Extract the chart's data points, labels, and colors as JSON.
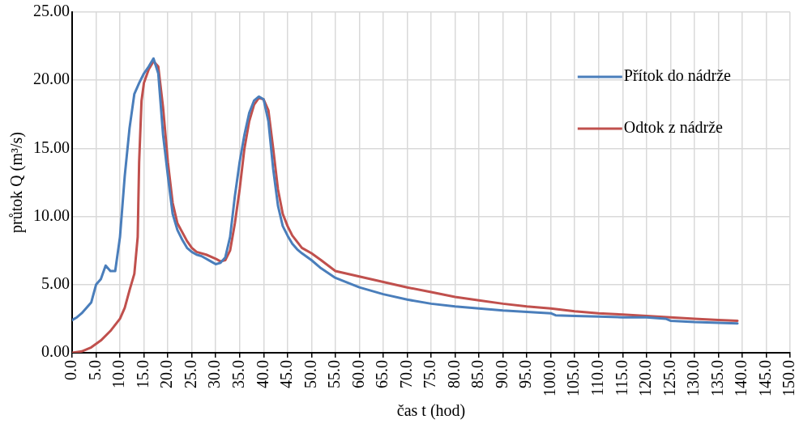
{
  "chart_data": {
    "type": "line",
    "xlabel": "čas t (hod)",
    "ylabel": "průtok Q (m³/s)",
    "xlim": [
      0,
      150
    ],
    "xticks": [
      {
        "value": 0,
        "label": "0.0"
      },
      {
        "value": 5,
        "label": "5.0"
      },
      {
        "value": 10,
        "label": "10.0"
      },
      {
        "value": 15,
        "label": "15.0"
      },
      {
        "value": 20,
        "label": "20.0"
      },
      {
        "value": 25,
        "label": "25.0"
      },
      {
        "value": 30,
        "label": "30.0"
      },
      {
        "value": 35,
        "label": "35.0"
      },
      {
        "value": 40,
        "label": "40.0"
      },
      {
        "value": 45,
        "label": "45.0"
      },
      {
        "value": 50,
        "label": "50.0"
      },
      {
        "value": 55,
        "label": "55.0"
      },
      {
        "value": 60,
        "label": "60.0"
      },
      {
        "value": 65,
        "label": "65.0"
      },
      {
        "value": 70,
        "label": "70.0"
      },
      {
        "value": 75,
        "label": "75.0"
      },
      {
        "value": 80,
        "label": "80.0"
      },
      {
        "value": 85,
        "label": "85.0"
      },
      {
        "value": 90,
        "label": "90.0"
      },
      {
        "value": 95,
        "label": "95.0"
      },
      {
        "value": 100,
        "label": "100.0"
      },
      {
        "value": 105,
        "label": "105.0"
      },
      {
        "value": 110,
        "label": "110.0"
      },
      {
        "value": 115,
        "label": "115.0"
      },
      {
        "value": 120,
        "label": "120.0"
      },
      {
        "value": 125,
        "label": "125.0"
      },
      {
        "value": 130,
        "label": "130.0"
      },
      {
        "value": 135,
        "label": "135.0"
      },
      {
        "value": 140,
        "label": "140.0"
      },
      {
        "value": 145,
        "label": "145.0"
      },
      {
        "value": 150,
        "label": "150.0"
      }
    ],
    "ylim": [
      0,
      25
    ],
    "yticks": [
      {
        "value": 0,
        "label": "0.00"
      },
      {
        "value": 5,
        "label": "5.00"
      },
      {
        "value": 10,
        "label": "10.00"
      },
      {
        "value": 15,
        "label": "15.00"
      },
      {
        "value": 20,
        "label": "20.00"
      },
      {
        "value": 25,
        "label": "25.00"
      }
    ],
    "grid": true,
    "legend": "top right",
    "marker": "none",
    "line_style": "solid",
    "series": [
      {
        "name": "Přítok do nádrže",
        "color": "#4a7ebb",
        "x": [
          0,
          1,
          2,
          3,
          4,
          5,
          6,
          7,
          8,
          9,
          10,
          11,
          12,
          13,
          14,
          15,
          16,
          17,
          18,
          19,
          20,
          21,
          22,
          23,
          24,
          25,
          26,
          27,
          28,
          29,
          30,
          31,
          32,
          33,
          34,
          35,
          36,
          37,
          38,
          39,
          40,
          41,
          42,
          43,
          44,
          45,
          46,
          47,
          48,
          50,
          52,
          55,
          60,
          65,
          70,
          75,
          80,
          85,
          90,
          95,
          100,
          101,
          105,
          110,
          115,
          120,
          124,
          125,
          130,
          135,
          139
        ],
        "values": [
          2.4,
          2.6,
          2.9,
          3.3,
          3.7,
          5.0,
          5.4,
          6.4,
          6.0,
          6.0,
          8.5,
          13.0,
          16.5,
          19.0,
          19.8,
          20.5,
          21.0,
          21.6,
          20.5,
          16.0,
          13.0,
          10.2,
          9.0,
          8.3,
          7.7,
          7.4,
          7.2,
          7.1,
          6.9,
          6.7,
          6.5,
          6.6,
          7.0,
          8.5,
          11.5,
          14.0,
          16.0,
          17.6,
          18.5,
          18.8,
          18.6,
          17.0,
          13.5,
          10.8,
          9.3,
          8.6,
          8.0,
          7.6,
          7.3,
          6.8,
          6.2,
          5.5,
          4.8,
          4.3,
          3.9,
          3.6,
          3.4,
          3.25,
          3.1,
          3.0,
          2.9,
          2.75,
          2.7,
          2.65,
          2.6,
          2.6,
          2.5,
          2.35,
          2.25,
          2.2,
          2.15
        ]
      },
      {
        "name": "Odtok z nádrže",
        "color": "#c0504d",
        "x": [
          0,
          2,
          4,
          6,
          8,
          10,
          11,
          12,
          13,
          13.7,
          14,
          14.5,
          15,
          16,
          17,
          18,
          19,
          20,
          21,
          22,
          24,
          25,
          26,
          28,
          30,
          31,
          32,
          33,
          34,
          35,
          36,
          37,
          38,
          39,
          40,
          41,
          42,
          43,
          44,
          45,
          46,
          48,
          50,
          52,
          55,
          60,
          65,
          70,
          75,
          80,
          85,
          90,
          95,
          100,
          105,
          110,
          115,
          120,
          125,
          130,
          135,
          139
        ],
        "values": [
          0.0,
          0.1,
          0.4,
          0.9,
          1.6,
          2.5,
          3.3,
          4.6,
          5.8,
          8.5,
          14.0,
          18.5,
          19.8,
          20.8,
          21.4,
          21.0,
          18.0,
          14.0,
          11.0,
          9.5,
          8.2,
          7.7,
          7.4,
          7.2,
          6.9,
          6.7,
          6.8,
          7.5,
          9.5,
          12.0,
          15.0,
          17.0,
          18.2,
          18.7,
          18.6,
          17.8,
          15.0,
          12.0,
          10.2,
          9.3,
          8.6,
          7.7,
          7.3,
          6.8,
          6.0,
          5.6,
          5.2,
          4.8,
          4.45,
          4.1,
          3.85,
          3.6,
          3.4,
          3.25,
          3.05,
          2.9,
          2.8,
          2.7,
          2.6,
          2.5,
          2.4,
          2.35
        ]
      }
    ]
  }
}
